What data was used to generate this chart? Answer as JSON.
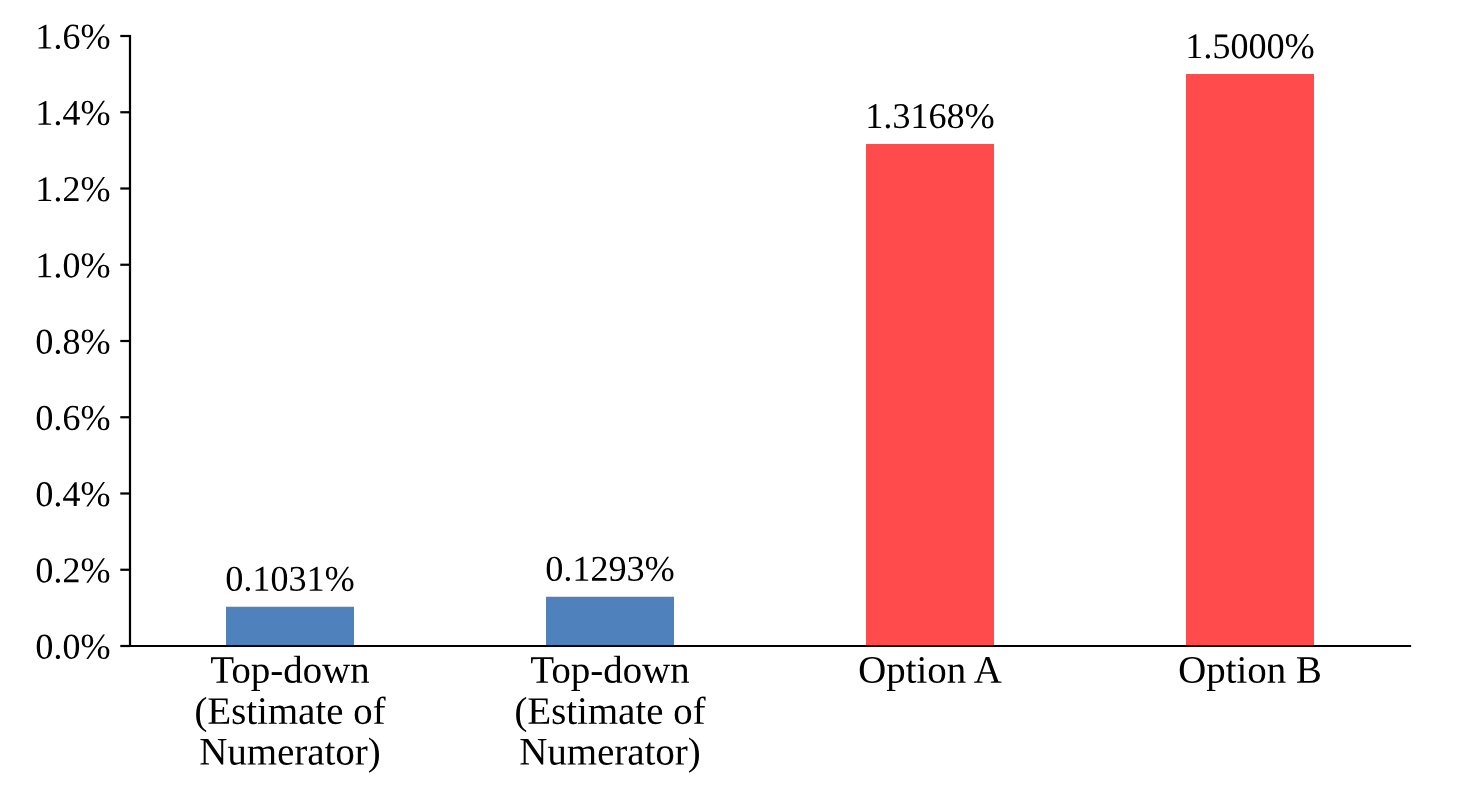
{
  "chart_data": {
    "type": "bar",
    "categories": [
      "Top-down (Estimate of Numerator)",
      "Top-down (Estimate of Numerator)",
      "Option A",
      "Option B"
    ],
    "values": [
      0.1031,
      0.1293,
      1.3168,
      1.5
    ],
    "colors": [
      "#4f81bd",
      "#4f81bd",
      "#ff4b4b",
      "#ff4b4b"
    ],
    "value_labels": [
      "0.1031%",
      "0.1293%",
      "1.3168%",
      "1.5000%"
    ],
    "ylim": [
      0,
      1.6
    ],
    "yticks": [
      {
        "value": 0,
        "label": "0.0%"
      },
      {
        "value": 0.2,
        "label": "0.2%"
      },
      {
        "value": 0.4,
        "label": "0.4%"
      },
      {
        "value": 0.6,
        "label": "0.6%"
      },
      {
        "value": 0.8,
        "label": "0.8%"
      },
      {
        "value": 1.0,
        "label": "1.0%"
      },
      {
        "value": 1.2,
        "label": "1.2%"
      },
      {
        "value": 1.4,
        "label": "1.4%"
      },
      {
        "value": 1.6,
        "label": "1.6%"
      }
    ],
    "grid": false,
    "legend": false
  }
}
